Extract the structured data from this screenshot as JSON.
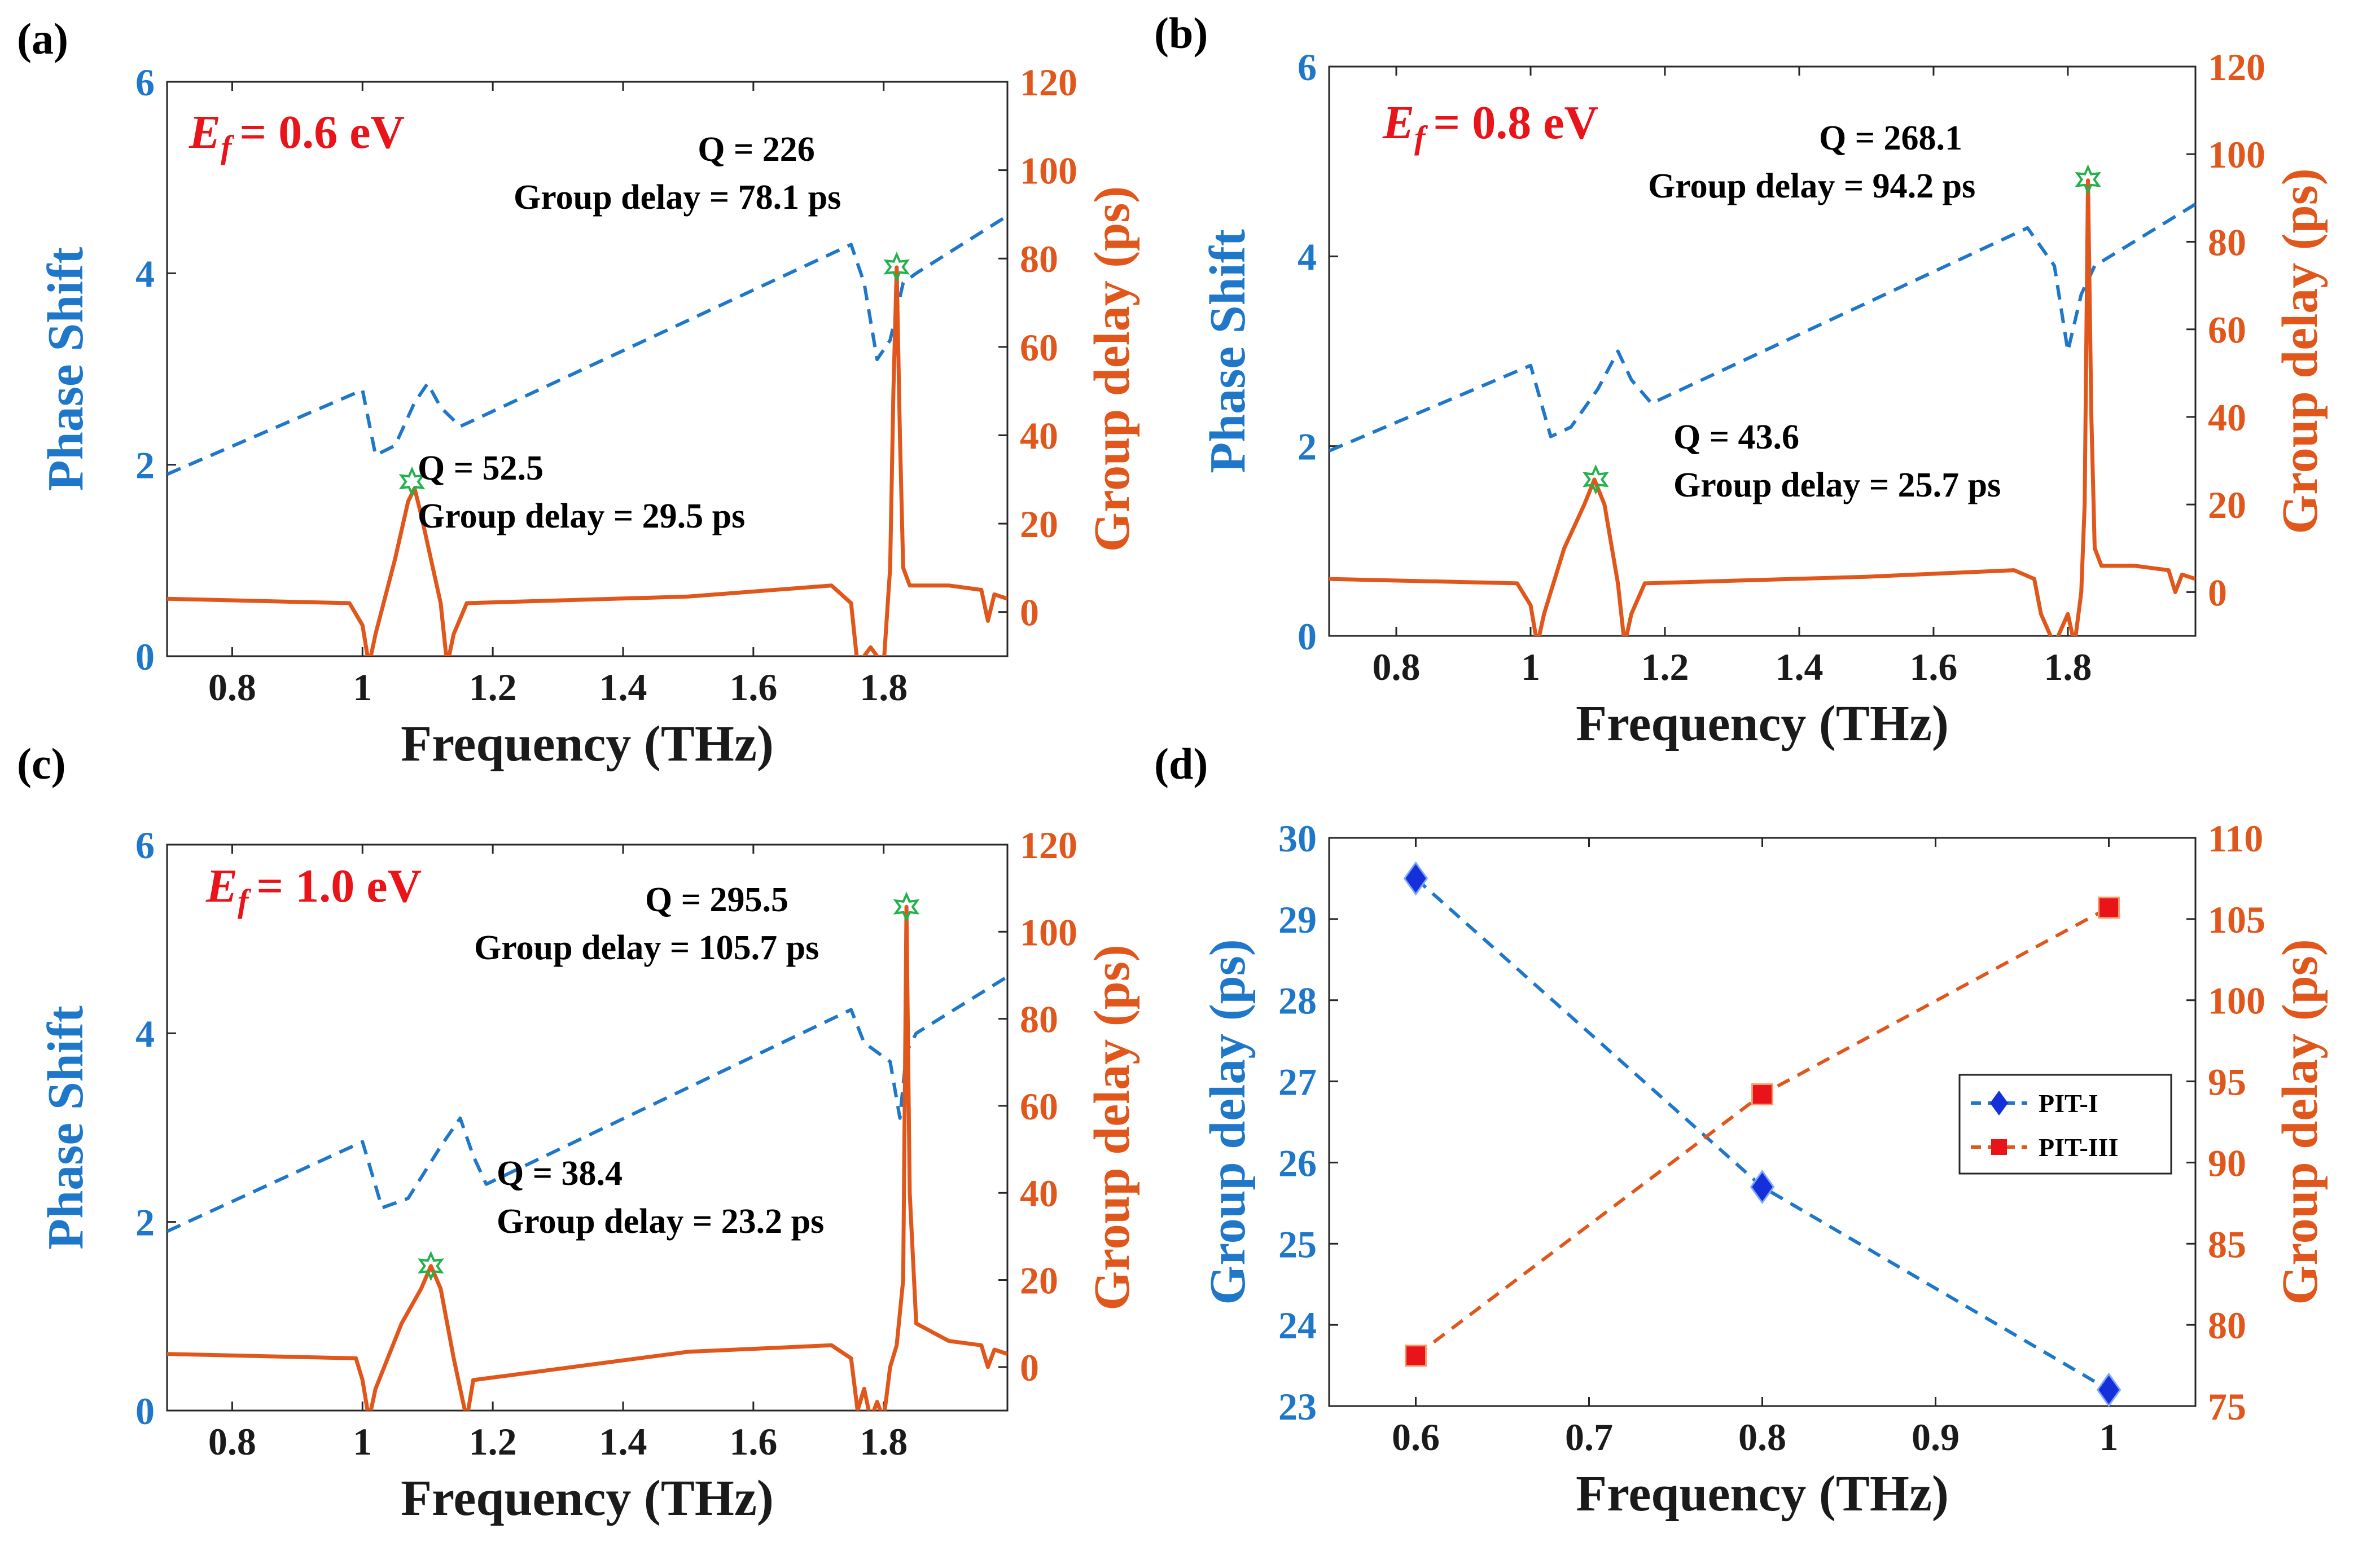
{
  "colors": {
    "phase": "#1f77c9",
    "delay": "#e0561b",
    "ef_label": "#e8141a",
    "star": "#22b14c",
    "pit1_marker": "#1530d8",
    "pit3_marker": "#e8141a"
  },
  "chart_data": [
    {
      "id": "a",
      "panel_label": "(a)",
      "type": "line",
      "ef_symbol": "E",
      "ef_sub": "f",
      "ef_value": "= 0.6 eV",
      "xlabel": "Frequency (THz)",
      "ylabel_left": "Phase Shift",
      "ylabel_right": "Group delay (ps)",
      "xlim": [
        0.7,
        1.99
      ],
      "ylim_left": [
        0,
        6
      ],
      "ylim_right": [
        -10,
        120
      ],
      "x_ticks": [
        0.8,
        1,
        1.2,
        1.4,
        1.6,
        1.8
      ],
      "x_tick_labels": [
        "0.8",
        "1",
        "1.2",
        "1.4",
        "1.6",
        "1.8"
      ],
      "y_left_ticks": [
        0,
        2,
        4,
        6
      ],
      "y_left_tick_labels": [
        "0",
        "2",
        "4",
        "6"
      ],
      "y_right_ticks": [
        0,
        20,
        40,
        60,
        80,
        100,
        120
      ],
      "y_right_tick_labels": [
        "0",
        "20",
        "40",
        "60",
        "80",
        "100",
        "120"
      ],
      "series": [
        {
          "name": "Phase Shift",
          "axis": "left",
          "style": "dashed",
          "x": [
            0.7,
            1.0,
            1.02,
            1.05,
            1.08,
            1.1,
            1.12,
            1.15,
            1.75,
            1.77,
            1.79,
            1.81,
            1.83,
            1.85,
            1.99
          ],
          "y": [
            1.9,
            2.78,
            2.1,
            2.2,
            2.65,
            2.85,
            2.6,
            2.4,
            4.3,
            3.9,
            3.1,
            3.3,
            3.9,
            4.0,
            4.6
          ]
        },
        {
          "name": "Group delay",
          "axis": "right",
          "style": "solid",
          "x": [
            0.7,
            0.98,
            1.0,
            1.01,
            1.02,
            1.05,
            1.07,
            1.08,
            1.09,
            1.12,
            1.13,
            1.14,
            1.16,
            1.5,
            1.72,
            1.75,
            1.76,
            1.78,
            1.8,
            1.81,
            1.815,
            1.82,
            1.825,
            1.83,
            1.84,
            1.9,
            1.95,
            1.96,
            1.97,
            1.99
          ],
          "y": [
            3,
            2,
            -3,
            -12,
            -5,
            12,
            25,
            28,
            22,
            2,
            -12,
            -5,
            2,
            3.5,
            6,
            2,
            -12,
            -8,
            -12,
            10,
            50,
            78,
            40,
            10,
            6,
            6,
            5,
            -2,
            4,
            3
          ]
        }
      ],
      "peaks": [
        {
          "x": 1.076,
          "y_right": 29.5,
          "q_label": "Q = 52.5",
          "gd_label": "Group delay = 29.5 ps"
        },
        {
          "x": 1.82,
          "y_right": 78.1,
          "q_label": "Q = 226",
          "gd_label": "Group delay = 78.1 ps"
        }
      ]
    },
    {
      "id": "b",
      "panel_label": "(b)",
      "type": "line",
      "ef_symbol": "E",
      "ef_sub": "f",
      "ef_value": "= 0.8 eV",
      "xlabel": "Frequency (THz)",
      "ylabel_left": "Phase Shift",
      "ylabel_right": "Group delay (ps)",
      "xlim": [
        0.7,
        1.99
      ],
      "ylim_left": [
        0,
        6
      ],
      "ylim_right": [
        -10,
        120
      ],
      "x_ticks": [
        0.8,
        1,
        1.2,
        1.4,
        1.6,
        1.8
      ],
      "x_tick_labels": [
        "0.8",
        "1",
        "1.2",
        "1.4",
        "1.6",
        "1.8"
      ],
      "y_left_ticks": [
        0,
        2,
        4,
        6
      ],
      "y_left_tick_labels": [
        "0",
        "2",
        "4",
        "6"
      ],
      "y_right_ticks": [
        0,
        20,
        40,
        60,
        80,
        100,
        120
      ],
      "y_right_tick_labels": [
        "0",
        "20",
        "40",
        "60",
        "80",
        "100",
        "120"
      ],
      "series": [
        {
          "name": "Phase Shift",
          "axis": "left",
          "style": "dashed",
          "x": [
            0.7,
            1.0,
            1.03,
            1.06,
            1.1,
            1.13,
            1.15,
            1.18,
            1.74,
            1.76,
            1.78,
            1.8,
            1.82,
            1.84,
            1.99
          ],
          "y": [
            1.95,
            2.85,
            2.1,
            2.2,
            2.6,
            3.0,
            2.7,
            2.45,
            4.3,
            4.1,
            3.9,
            3.0,
            3.6,
            3.9,
            4.55
          ]
        },
        {
          "name": "Group delay",
          "axis": "right",
          "style": "solid",
          "x": [
            0.7,
            0.98,
            1.0,
            1.01,
            1.02,
            1.05,
            1.08,
            1.095,
            1.11,
            1.13,
            1.14,
            1.15,
            1.17,
            1.5,
            1.72,
            1.75,
            1.76,
            1.78,
            1.8,
            1.81,
            1.82,
            1.825,
            1.83,
            1.835,
            1.84,
            1.85,
            1.9,
            1.95,
            1.96,
            1.97,
            1.99
          ],
          "y": [
            3,
            2,
            -3,
            -12,
            -5,
            10,
            20,
            25.7,
            20,
            2,
            -12,
            -5,
            2,
            3.5,
            5,
            3,
            -5,
            -12,
            -5,
            -12,
            0,
            20,
            94,
            40,
            10,
            6,
            6,
            5,
            0,
            4,
            3
          ]
        }
      ],
      "peaks": [
        {
          "x": 1.097,
          "y_right": 25.7,
          "q_label": "Q = 43.6",
          "gd_label": "Group delay = 25.7 ps"
        },
        {
          "x": 1.83,
          "y_right": 94.2,
          "q_label": "Q = 268.1",
          "gd_label": "Group delay = 94.2 ps"
        }
      ]
    },
    {
      "id": "c",
      "panel_label": "(c)",
      "type": "line",
      "ef_symbol": "E",
      "ef_sub": "f",
      "ef_value": "= 1.0 eV",
      "xlabel": "Frequency (THz)",
      "ylabel_left": "Phase Shift",
      "ylabel_right": "Group delay (ps)",
      "xlim": [
        0.7,
        1.99
      ],
      "ylim_left": [
        0,
        6
      ],
      "ylim_right": [
        -10,
        120
      ],
      "x_ticks": [
        0.8,
        1,
        1.2,
        1.4,
        1.6,
        1.8
      ],
      "x_tick_labels": [
        "0.8",
        "1",
        "1.2",
        "1.4",
        "1.6",
        "1.8"
      ],
      "y_left_ticks": [
        0,
        2,
        4,
        6
      ],
      "y_left_tick_labels": [
        "0",
        "2",
        "4",
        "6"
      ],
      "y_right_ticks": [
        0,
        20,
        40,
        60,
        80,
        100,
        120
      ],
      "y_right_tick_labels": [
        "0",
        "20",
        "40",
        "60",
        "80",
        "100",
        "120"
      ],
      "series": [
        {
          "name": "Phase Shift",
          "axis": "left",
          "style": "dashed",
          "x": [
            0.7,
            1.0,
            1.03,
            1.07,
            1.12,
            1.15,
            1.17,
            1.19,
            1.75,
            1.77,
            1.79,
            1.81,
            1.825,
            1.835,
            1.85,
            1.99
          ],
          "y": [
            1.9,
            2.85,
            2.15,
            2.25,
            2.8,
            3.1,
            2.7,
            2.4,
            4.25,
            3.9,
            3.8,
            3.7,
            3.1,
            3.8,
            4.0,
            4.6
          ]
        },
        {
          "name": "Group delay",
          "axis": "right",
          "style": "solid",
          "x": [
            0.7,
            0.99,
            1.0,
            1.01,
            1.02,
            1.06,
            1.09,
            1.105,
            1.12,
            1.14,
            1.15,
            1.16,
            1.17,
            1.5,
            1.72,
            1.75,
            1.76,
            1.77,
            1.78,
            1.79,
            1.8,
            1.81,
            1.82,
            1.83,
            1.835,
            1.84,
            1.85,
            1.9,
            1.95,
            1.96,
            1.97,
            1.99
          ],
          "y": [
            3,
            2,
            -3,
            -12,
            -5,
            10,
            18,
            23.2,
            18,
            2,
            -5,
            -12,
            -3,
            3.5,
            5,
            2,
            -10,
            -5,
            -12,
            -8,
            -12,
            0,
            5,
            20,
            105.7,
            40,
            10,
            6,
            5,
            0,
            4,
            3
          ]
        }
      ],
      "peaks": [
        {
          "x": 1.105,
          "y_right": 23.2,
          "q_label": "Q = 38.4",
          "gd_label": "Group delay = 23.2 ps"
        },
        {
          "x": 1.835,
          "y_right": 105.7,
          "q_label": "Q = 295.5",
          "gd_label": "Group delay = 105.7 ps"
        }
      ]
    },
    {
      "id": "d",
      "panel_label": "(d)",
      "type": "line",
      "xlabel": "Frequency (THz)",
      "ylabel_left": "Group delay (ps)",
      "ylabel_right": "Group delay (ps)",
      "xlim": [
        0.55,
        1.05
      ],
      "ylim_left": [
        23,
        30
      ],
      "ylim_right": [
        75,
        110
      ],
      "x_ticks": [
        0.6,
        0.7,
        0.8,
        0.9,
        1.0
      ],
      "x_tick_labels": [
        "0.6",
        "0.7",
        "0.8",
        "0.9",
        "1"
      ],
      "y_left_ticks": [
        23,
        24,
        25,
        26,
        27,
        28,
        29,
        30
      ],
      "y_left_tick_labels": [
        "23",
        "24",
        "25",
        "26",
        "27",
        "28",
        "29",
        "30"
      ],
      "y_right_ticks": [
        75,
        80,
        85,
        90,
        95,
        100,
        105,
        110
      ],
      "y_right_tick_labels": [
        "75",
        "80",
        "85",
        "90",
        "95",
        "100",
        "105",
        "110"
      ],
      "series": [
        {
          "name": "PIT-I",
          "axis": "left",
          "marker": "diamond",
          "x": [
            0.6,
            0.8,
            1.0
          ],
          "y": [
            29.5,
            25.7,
            23.2
          ]
        },
        {
          "name": "PIT-III",
          "axis": "right",
          "marker": "square",
          "x": [
            0.6,
            0.8,
            1.0
          ],
          "y": [
            78.1,
            94.2,
            105.7
          ]
        }
      ],
      "legend": [
        "PIT-I",
        "PIT-III"
      ],
      "legend_position": "center-right"
    }
  ]
}
